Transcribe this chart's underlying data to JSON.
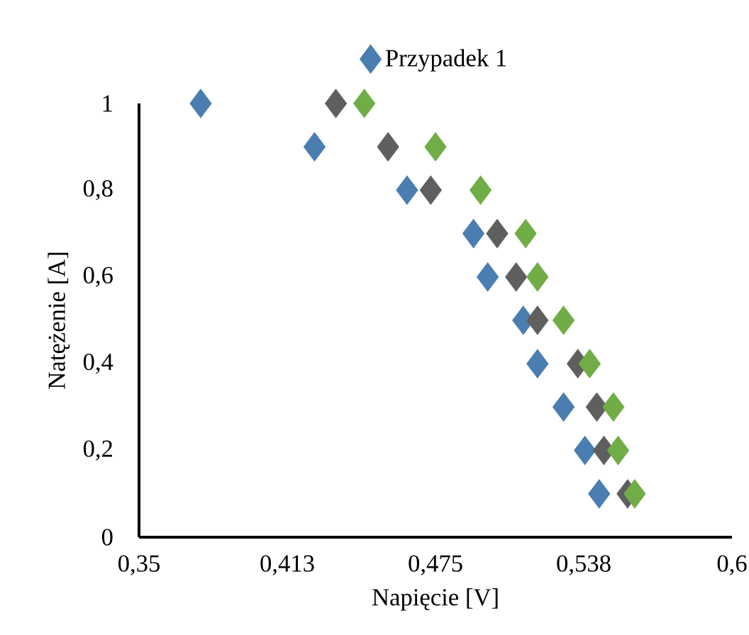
{
  "chart_data": {
    "type": "scatter",
    "xlabel": "Napięcie [V]",
    "ylabel": "Natężenie [A]",
    "xlim": [
      0.35,
      0.6
    ],
    "ylim": [
      0,
      1
    ],
    "xticks": [
      {
        "value": 0.35,
        "label": "0,35"
      },
      {
        "value": 0.4125,
        "label": "0,413"
      },
      {
        "value": 0.475,
        "label": "0,475"
      },
      {
        "value": 0.5375,
        "label": "0,538"
      },
      {
        "value": 0.6,
        "label": "0,6"
      }
    ],
    "yticks": [
      {
        "value": 0,
        "label": "0"
      },
      {
        "value": 0.2,
        "label": "0,2"
      },
      {
        "value": 0.4,
        "label": "0,4"
      },
      {
        "value": 0.6,
        "label": "0,6"
      },
      {
        "value": 0.8,
        "label": "0,8"
      },
      {
        "value": 1,
        "label": "1"
      }
    ],
    "marker": "diamond",
    "legend": "top",
    "grid": false,
    "series": [
      {
        "name": "Przypadek 1",
        "color": "#4a7eb0",
        "x": [
          0.376,
          0.424,
          0.463,
          0.491,
          0.497,
          0.512,
          0.518,
          0.529,
          0.538,
          0.544
        ],
        "values": [
          1,
          0.9,
          0.8,
          0.7,
          0.6,
          0.5,
          0.4,
          0.3,
          0.2,
          0.1
        ]
      },
      {
        "color": "#5f5f5f",
        "x": [
          0.433,
          0.455,
          0.473,
          0.501,
          0.509,
          0.518,
          0.535,
          0.543,
          0.546,
          0.556
        ],
        "values": [
          1,
          0.9,
          0.8,
          0.7,
          0.6,
          0.5,
          0.4,
          0.3,
          0.2,
          0.1
        ]
      },
      {
        "color": "#70ad47",
        "x": [
          0.445,
          0.475,
          0.494,
          0.513,
          0.518,
          0.529,
          0.54,
          0.55,
          0.552,
          0.559
        ],
        "values": [
          1,
          0.9,
          0.8,
          0.7,
          0.6,
          0.5,
          0.4,
          0.3,
          0.2,
          0.1
        ]
      }
    ]
  }
}
